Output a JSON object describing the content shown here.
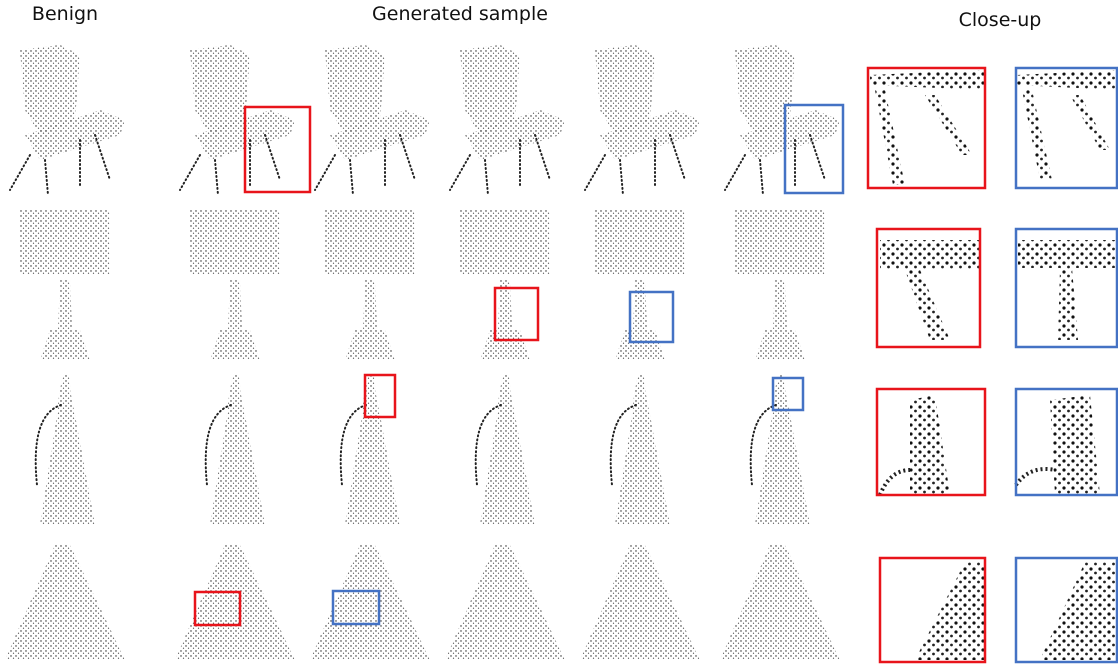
{
  "header": {
    "benign": "Benign",
    "generated": "Generated sample",
    "closeup": "Close-up"
  }
}
